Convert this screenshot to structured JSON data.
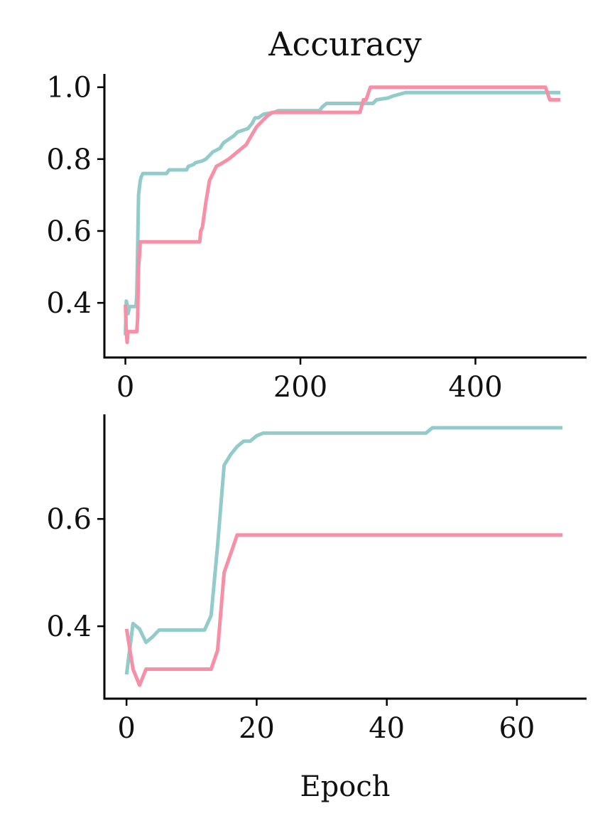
{
  "title": "Accuracy",
  "colors": {
    "series_a": "#92cbc9",
    "series_b": "#f78fa7",
    "axis": "#000000"
  },
  "chart_data": [
    {
      "type": "line",
      "title": "Accuracy",
      "xlabel": "",
      "ylabel": "",
      "xlim": [
        -24,
        527
      ],
      "ylim": [
        0.248,
        1.037
      ],
      "xticks": [
        0,
        200,
        400
      ],
      "xtick_labels": [
        "0",
        "200",
        "400"
      ],
      "yticks": [
        0.4,
        0.6,
        0.8,
        1.0
      ],
      "ytick_labels": [
        "0.4",
        "0.6",
        "0.8",
        "1.0"
      ],
      "grid": false,
      "legend": "none",
      "series": [
        {
          "color": "#92cbc9",
          "x": [
            0,
            1,
            2,
            3,
            5,
            12,
            13,
            14,
            15,
            16,
            17,
            18,
            20,
            22,
            47,
            50,
            70,
            72,
            78,
            80,
            88,
            92,
            96,
            100,
            108,
            112,
            118,
            124,
            128,
            140,
            145,
            148,
            152,
            158,
            170,
            175,
            188,
            222,
            225,
            230,
            283,
            287,
            300,
            305,
            320,
            340,
            490,
            497
          ],
          "y": [
            0.31,
            0.405,
            0.395,
            0.37,
            0.39,
            0.39,
            0.42,
            0.55,
            0.7,
            0.72,
            0.74,
            0.75,
            0.76,
            0.76,
            0.76,
            0.77,
            0.77,
            0.78,
            0.785,
            0.79,
            0.795,
            0.8,
            0.81,
            0.82,
            0.83,
            0.845,
            0.855,
            0.865,
            0.875,
            0.885,
            0.9,
            0.915,
            0.915,
            0.925,
            0.93,
            0.935,
            0.935,
            0.935,
            0.945,
            0.955,
            0.955,
            0.965,
            0.97,
            0.975,
            0.985,
            0.985,
            0.985,
            0.985
          ]
        },
        {
          "color": "#f78fa7",
          "x": [
            0,
            1,
            2,
            3,
            12,
            13,
            14,
            15,
            16,
            17,
            85,
            86,
            88,
            92,
            96,
            100,
            104,
            108,
            118,
            128,
            138,
            145,
            150,
            162,
            168,
            200,
            230,
            268,
            272,
            275,
            280,
            400,
            480,
            485,
            497
          ],
          "y": [
            0.395,
            0.32,
            0.29,
            0.32,
            0.32,
            0.32,
            0.355,
            0.5,
            0.53,
            0.57,
            0.57,
            0.6,
            0.61,
            0.68,
            0.74,
            0.76,
            0.78,
            0.785,
            0.8,
            0.82,
            0.84,
            0.87,
            0.89,
            0.92,
            0.93,
            0.93,
            0.93,
            0.93,
            0.965,
            0.965,
            1.0,
            1.0,
            1.0,
            0.965,
            0.965
          ]
        }
      ]
    },
    {
      "type": "line",
      "title": "",
      "xlabel": "Epoch",
      "ylabel": "",
      "xlim": [
        -3.4,
        70.7
      ],
      "ylim": [
        0.265,
        0.795
      ],
      "xticks": [
        0,
        20,
        40,
        60
      ],
      "xtick_labels": [
        "0",
        "20",
        "40",
        "60"
      ],
      "yticks": [
        0.4,
        0.6
      ],
      "ytick_labels": [
        "0.4",
        "0.6"
      ],
      "grid": false,
      "legend": "none",
      "series": [
        {
          "color": "#92cbc9",
          "x": [
            0,
            1,
            2,
            3,
            4,
            5,
            12,
            13,
            14,
            15,
            16,
            17,
            18,
            19,
            20,
            21,
            22,
            46,
            47,
            67
          ],
          "y": [
            0.31,
            0.405,
            0.395,
            0.37,
            0.38,
            0.393,
            0.393,
            0.42,
            0.55,
            0.7,
            0.72,
            0.735,
            0.745,
            0.745,
            0.755,
            0.76,
            0.76,
            0.76,
            0.77,
            0.77
          ]
        },
        {
          "color": "#f78fa7",
          "x": [
            0,
            1,
            2,
            3,
            4,
            12,
            13,
            14,
            15,
            16,
            17,
            67
          ],
          "y": [
            0.395,
            0.32,
            0.29,
            0.32,
            0.32,
            0.32,
            0.32,
            0.355,
            0.5,
            0.535,
            0.57,
            0.57
          ]
        }
      ]
    }
  ]
}
